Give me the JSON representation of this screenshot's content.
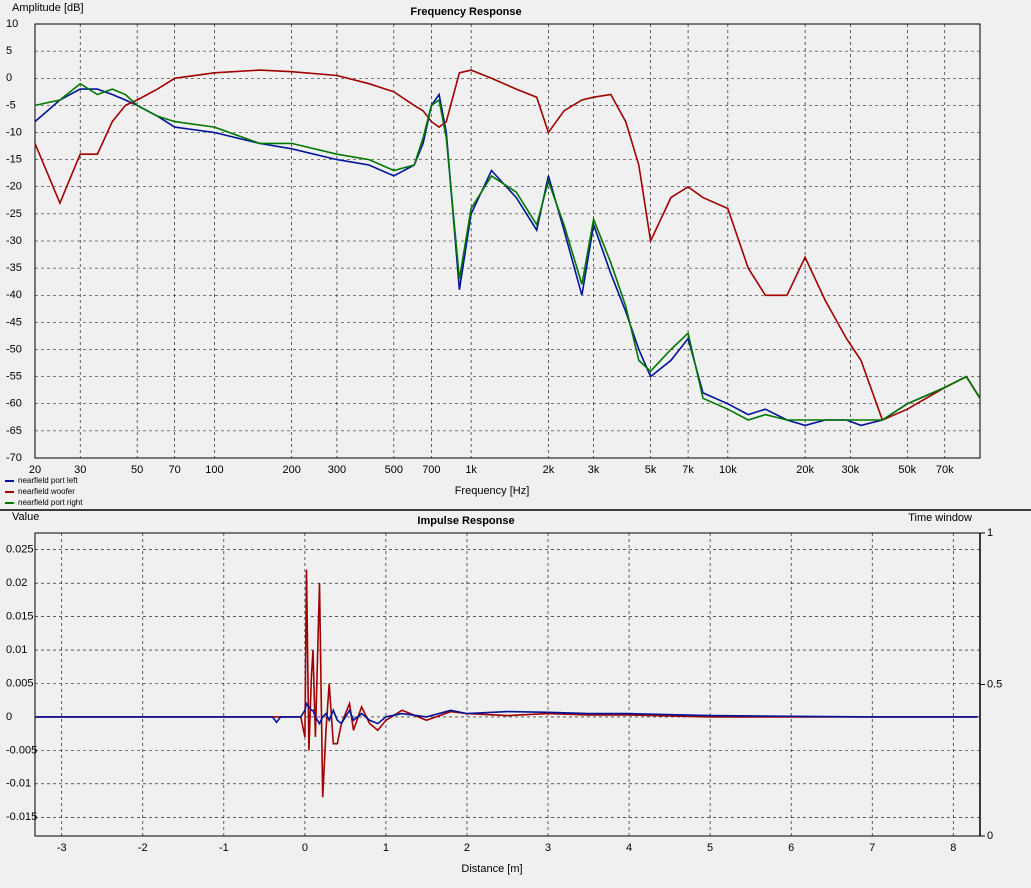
{
  "chart_data": [
    {
      "type": "line",
      "title": "Frequency Response",
      "xlabel": "Frequency [Hz]",
      "ylabel": "Amplitude [dB]",
      "xscale": "log",
      "grid": true,
      "legend": "bottom-left",
      "xlim": [
        20,
        96000
      ],
      "ylim": [
        -70,
        10
      ],
      "xticks": [
        20,
        30,
        50,
        70,
        100,
        200,
        300,
        500,
        700,
        {
          "value": 1000,
          "label": "1k"
        },
        {
          "value": 2000,
          "label": "2k"
        },
        {
          "value": 3000,
          "label": "3k"
        },
        {
          "value": 5000,
          "label": "5k"
        },
        {
          "value": 7000,
          "label": "7k"
        },
        {
          "value": 10000,
          "label": "10k"
        },
        {
          "value": 20000,
          "label": "20k"
        },
        {
          "value": 30000,
          "label": "30k"
        },
        {
          "value": 50000,
          "label": "50k"
        },
        {
          "value": 70000,
          "label": "70k"
        }
      ],
      "yticks": [
        10,
        5,
        0,
        -5,
        -10,
        -15,
        -20,
        -25,
        -30,
        -35,
        -40,
        -45,
        -50,
        -55,
        -60,
        -65,
        -70
      ],
      "x": [
        20,
        25,
        30,
        35,
        40,
        45,
        50,
        60,
        70,
        100,
        150,
        200,
        300,
        400,
        500,
        600,
        650,
        700,
        750,
        800,
        900,
        1000,
        1200,
        1500,
        1800,
        2000,
        2300,
        2700,
        3000,
        3500,
        4000,
        4500,
        5000,
        6000,
        7000,
        8000,
        10000,
        12000,
        14000,
        17000,
        20000,
        24000,
        29000,
        33000,
        40000,
        50000,
        70000,
        85000,
        96000
      ],
      "series": [
        {
          "name": "nearfield port left",
          "color": "#00149a",
          "values": [
            -8,
            -4,
            -2,
            -2,
            -3,
            -4,
            -5,
            -7,
            -9,
            -10,
            -12,
            -13,
            -15,
            -16,
            -18,
            -16,
            -12,
            -5,
            -3,
            -10,
            -39,
            -25,
            -17,
            -22,
            -28,
            -18,
            -28,
            -40,
            -27,
            -36,
            -43,
            -50,
            -55,
            -52,
            -48,
            -58,
            -60,
            -62,
            -61,
            -63,
            -64,
            -63,
            -63,
            -64,
            -63,
            -60,
            -57,
            -55,
            -59
          ]
        },
        {
          "name": "nearfield woofer",
          "color": "#a00000",
          "values": [
            -12,
            -23,
            -14,
            -14,
            -8,
            -5,
            -4,
            -2,
            0,
            1,
            1.5,
            1.2,
            0.5,
            -1,
            -2.5,
            -5,
            -6,
            -8,
            -9,
            -8,
            1,
            1.5,
            0,
            -2,
            -3.5,
            -10,
            -6,
            -4,
            -3.5,
            -3,
            -8,
            -16,
            -30,
            -22,
            -20,
            -22,
            -24,
            -35,
            -40,
            -40,
            -33,
            -41,
            -48,
            -52,
            -63,
            -61,
            -57,
            -55,
            -59
          ]
        },
        {
          "name": "nearfield port right",
          "color": "#007800",
          "values": [
            -5,
            -4,
            -1,
            -3,
            -2,
            -3,
            -5,
            -7,
            -8,
            -9,
            -12,
            -12,
            -14,
            -15,
            -17,
            -16,
            -11,
            -5,
            -4,
            -11,
            -37,
            -24,
            -18,
            -21,
            -27,
            -19,
            -27,
            -38,
            -26,
            -34,
            -42,
            -52,
            -54,
            -50,
            -47,
            -59,
            -61,
            -63,
            -62,
            -63,
            -63,
            -63,
            -63,
            -63,
            -63,
            -60,
            -57,
            -55,
            -59
          ]
        }
      ]
    },
    {
      "type": "line",
      "title": "Impulse Response",
      "xlabel": "Distance [m]",
      "ylabel": "Value",
      "y2label": "Time window",
      "grid": true,
      "xlim": [
        -3.33,
        8.33
      ],
      "ylim": [
        -0.0178,
        0.0275
      ],
      "y2lim": [
        0,
        1
      ],
      "xticks": [
        -3,
        -2,
        -1,
        0,
        1,
        2,
        3,
        4,
        5,
        6,
        7,
        8
      ],
      "yticks": [
        0.025,
        0.02,
        0.015,
        0.01,
        0.005,
        0,
        -0.005,
        -0.01,
        -0.015
      ],
      "y2ticks": [
        1,
        0.5,
        0
      ],
      "x": [
        -3.33,
        -0.4,
        -0.35,
        -0.3,
        -0.05,
        0,
        0.02,
        0.05,
        0.08,
        0.1,
        0.13,
        0.18,
        0.22,
        0.26,
        0.3,
        0.35,
        0.4,
        0.45,
        0.55,
        0.6,
        0.7,
        0.8,
        0.9,
        1.0,
        1.2,
        1.5,
        1.8,
        2.0,
        2.5,
        3.0,
        3.5,
        4.0,
        5.0,
        6.0,
        7.0,
        8.3
      ],
      "series": [
        {
          "color": "#a00000",
          "values": [
            0,
            0,
            0,
            0,
            0,
            -0.003,
            0.022,
            -0.005,
            0.006,
            0.01,
            -0.003,
            0.02,
            -0.012,
            -0.002,
            0.005,
            -0.004,
            -0.004,
            -0.001,
            0.002,
            -0.002,
            0.0015,
            -0.001,
            -0.002,
            -0.0005,
            0.001,
            -0.0005,
            0.0008,
            0.0005,
            0.0002,
            0.0005,
            0.0003,
            0.0003,
            0,
            0,
            0,
            0
          ]
        },
        {
          "color": "#00149a",
          "values": [
            0,
            0,
            -0.0008,
            0,
            0,
            0.001,
            0.002,
            0.0015,
            0.001,
            0.001,
            0,
            -0.001,
            0,
            0.0005,
            -0.0005,
            0.001,
            -0.0005,
            -0.001,
            0.001,
            -0.0005,
            0.0005,
            -0.0005,
            -0.001,
            0,
            0.0005,
            0,
            0.001,
            0.0005,
            0.0008,
            0.0007,
            0.0005,
            0.0005,
            0.0002,
            0.0001,
            0,
            0
          ]
        }
      ]
    }
  ]
}
